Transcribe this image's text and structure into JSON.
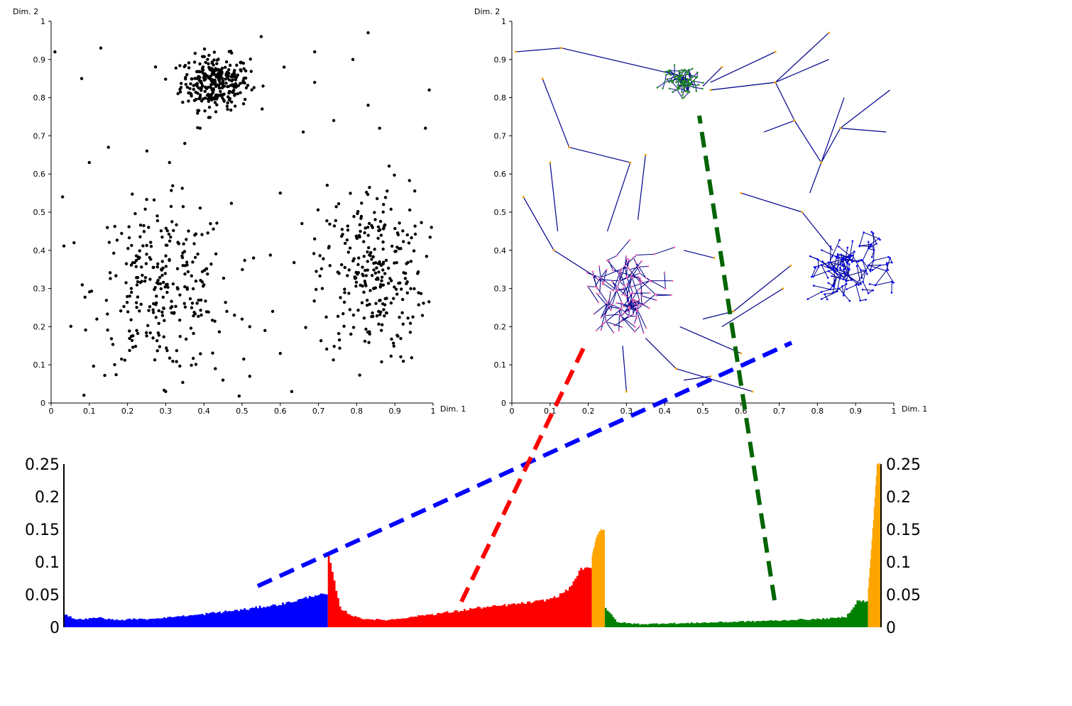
{
  "chart_data": [
    {
      "type": "scatter",
      "panel": "top-left",
      "xlabel": "Dim. 1",
      "ylabel": "Dim. 2",
      "xlim": [
        0,
        1
      ],
      "ylim": [
        0,
        1
      ],
      "xticks": [
        "0",
        "0.1",
        "0.2",
        "0.3",
        "0.4",
        "0.5",
        "0.6",
        "0.7",
        "0.8",
        "0.9",
        "1"
      ],
      "yticks": [
        "0",
        "0.1",
        "0.2",
        "0.3",
        "0.4",
        "0.5",
        "0.6",
        "0.7",
        "0.8",
        "0.9",
        "1"
      ],
      "point_color": "#000000",
      "clusters": [
        {
          "center": [
            0.43,
            0.84
          ],
          "spread": [
            0.045,
            0.035
          ],
          "count": 300
        },
        {
          "center": [
            0.29,
            0.3
          ],
          "spread": [
            0.09,
            0.11
          ],
          "count": 280
        },
        {
          "center": [
            0.84,
            0.34
          ],
          "spread": [
            0.07,
            0.12
          ],
          "count": 280
        }
      ],
      "outliers": [
        [
          0.01,
          0.92
        ],
        [
          0.13,
          0.93
        ],
        [
          0.08,
          0.85
        ],
        [
          0.1,
          0.63
        ],
        [
          0.15,
          0.67
        ],
        [
          0.03,
          0.54
        ],
        [
          0.06,
          0.42
        ],
        [
          0.55,
          0.96
        ],
        [
          0.61,
          0.88
        ],
        [
          0.69,
          0.92
        ],
        [
          0.69,
          0.84
        ],
        [
          0.83,
          0.97
        ],
        [
          0.79,
          0.9
        ],
        [
          0.83,
          0.78
        ],
        [
          0.86,
          0.72
        ],
        [
          0.99,
          0.82
        ],
        [
          0.98,
          0.72
        ],
        [
          0.66,
          0.71
        ],
        [
          0.74,
          0.74
        ],
        [
          0.35,
          0.68
        ],
        [
          0.31,
          0.63
        ],
        [
          0.39,
          0.72
        ],
        [
          0.6,
          0.55
        ],
        [
          0.53,
          0.38
        ],
        [
          0.58,
          0.24
        ],
        [
          0.6,
          0.13
        ],
        [
          0.52,
          0.07
        ],
        [
          0.45,
          0.06
        ],
        [
          0.43,
          0.09
        ],
        [
          0.3,
          0.03
        ],
        [
          0.63,
          0.03
        ],
        [
          0.71,
          0.3
        ],
        [
          0.69,
          0.43
        ],
        [
          0.73,
          0.36
        ],
        [
          0.48,
          0.23
        ],
        [
          0.5,
          0.22
        ],
        [
          0.52,
          0.2
        ],
        [
          0.46,
          0.24
        ],
        [
          0.56,
          0.19
        ]
      ]
    },
    {
      "type": "tree",
      "panel": "top-right",
      "xlabel": "Dim. 1",
      "ylabel": "Dim. 2",
      "xlim": [
        0,
        1
      ],
      "ylim": [
        0,
        1
      ],
      "xticks": [
        "0",
        "0.1",
        "0.2",
        "0.3",
        "0.4",
        "0.5",
        "0.6",
        "0.7",
        "0.8",
        "0.9",
        "1"
      ],
      "yticks": [
        "0",
        "0.1",
        "0.2",
        "0.3",
        "0.4",
        "0.5",
        "0.6",
        "0.7",
        "0.8",
        "0.9",
        "1"
      ],
      "edge_color": "#00008b",
      "subtrees": [
        {
          "root": [
            0.45,
            0.85
          ],
          "spread": 0.08,
          "nodes": 120,
          "node_color": "#228b22"
        },
        {
          "root": [
            0.3,
            0.3
          ],
          "spread": 0.19,
          "nodes": 140,
          "node_color": "#ff69b4"
        },
        {
          "root": [
            0.85,
            0.33
          ],
          "spread": 0.15,
          "nodes": 140,
          "node_color": "#0000ff"
        }
      ],
      "long_edges": [
        [
          [
            0.01,
            0.92
          ],
          [
            0.13,
            0.93
          ]
        ],
        [
          [
            0.13,
            0.93
          ],
          [
            0.43,
            0.86
          ]
        ],
        [
          [
            0.08,
            0.85
          ],
          [
            0.15,
            0.67
          ]
        ],
        [
          [
            0.15,
            0.67
          ],
          [
            0.31,
            0.63
          ]
        ],
        [
          [
            0.31,
            0.63
          ],
          [
            0.25,
            0.45
          ]
        ],
        [
          [
            0.1,
            0.63
          ],
          [
            0.12,
            0.45
          ]
        ],
        [
          [
            0.03,
            0.54
          ],
          [
            0.11,
            0.4
          ]
        ],
        [
          [
            0.11,
            0.4
          ],
          [
            0.22,
            0.33
          ]
        ],
        [
          [
            0.35,
            0.65
          ],
          [
            0.33,
            0.48
          ]
        ],
        [
          [
            0.55,
            0.88
          ],
          [
            0.5,
            0.83
          ]
        ],
        [
          [
            0.69,
            0.92
          ],
          [
            0.52,
            0.84
          ]
        ],
        [
          [
            0.69,
            0.84
          ],
          [
            0.52,
            0.82
          ]
        ],
        [
          [
            0.52,
            0.82
          ],
          [
            0.69,
            0.84
          ]
        ],
        [
          [
            0.69,
            0.84
          ],
          [
            0.83,
            0.9
          ]
        ],
        [
          [
            0.83,
            0.97
          ],
          [
            0.69,
            0.84
          ]
        ],
        [
          [
            0.69,
            0.84
          ],
          [
            0.74,
            0.74
          ]
        ],
        [
          [
            0.74,
            0.74
          ],
          [
            0.66,
            0.71
          ]
        ],
        [
          [
            0.74,
            0.74
          ],
          [
            0.81,
            0.63
          ]
        ],
        [
          [
            0.81,
            0.63
          ],
          [
            0.86,
            0.72
          ]
        ],
        [
          [
            0.86,
            0.72
          ],
          [
            0.99,
            0.82
          ]
        ],
        [
          [
            0.86,
            0.72
          ],
          [
            0.98,
            0.71
          ]
        ],
        [
          [
            0.81,
            0.63
          ],
          [
            0.87,
            0.8
          ]
        ],
        [
          [
            0.81,
            0.63
          ],
          [
            0.78,
            0.55
          ]
        ],
        [
          [
            0.6,
            0.55
          ],
          [
            0.76,
            0.5
          ]
        ],
        [
          [
            0.76,
            0.5
          ],
          [
            0.84,
            0.4
          ]
        ],
        [
          [
            0.53,
            0.38
          ],
          [
            0.45,
            0.4
          ]
        ],
        [
          [
            0.71,
            0.3
          ],
          [
            0.55,
            0.2
          ]
        ],
        [
          [
            0.73,
            0.36
          ],
          [
            0.58,
            0.24
          ]
        ],
        [
          [
            0.58,
            0.24
          ],
          [
            0.5,
            0.22
          ]
        ],
        [
          [
            0.6,
            0.13
          ],
          [
            0.44,
            0.2
          ]
        ],
        [
          [
            0.63,
            0.03
          ],
          [
            0.43,
            0.09
          ]
        ],
        [
          [
            0.43,
            0.09
          ],
          [
            0.35,
            0.17
          ]
        ],
        [
          [
            0.3,
            0.03
          ],
          [
            0.29,
            0.15
          ]
        ],
        [
          [
            0.52,
            0.07
          ],
          [
            0.45,
            0.06
          ]
        ]
      ]
    },
    {
      "type": "area",
      "panel": "bottom",
      "yticks": [
        "0",
        "0.05",
        "0.1",
        "0.15",
        "0.2",
        "0.25"
      ],
      "ylim": [
        0,
        0.25
      ],
      "series": [
        {
          "color": "#0000ff",
          "x_range": [
            0.0,
            0.323
          ],
          "values": [
            0.02,
            0.012,
            0.013,
            0.015,
            0.012,
            0.011,
            0.013,
            0.012,
            0.014,
            0.015,
            0.017,
            0.018,
            0.02,
            0.022,
            0.024,
            0.026,
            0.028,
            0.031,
            0.033,
            0.036,
            0.04,
            0.045,
            0.05
          ]
        },
        {
          "color": "#ff0000",
          "x_range": [
            0.323,
            0.646
          ],
          "values": [
            0.11,
            0.03,
            0.018,
            0.013,
            0.012,
            0.011,
            0.013,
            0.015,
            0.018,
            0.02,
            0.022,
            0.024,
            0.027,
            0.03,
            0.031,
            0.033,
            0.035,
            0.037,
            0.039,
            0.042,
            0.048,
            0.06,
            0.09
          ]
        },
        {
          "color": "#ffa500",
          "x_range": [
            0.646,
            0.662
          ],
          "values": [
            0.11,
            0.14,
            0.15
          ]
        },
        {
          "color": "#008000",
          "x_range": [
            0.662,
            0.984
          ],
          "values": [
            0.03,
            0.008,
            0.006,
            0.005,
            0.005,
            0.006,
            0.006,
            0.006,
            0.007,
            0.007,
            0.008,
            0.008,
            0.009,
            0.009,
            0.01,
            0.01,
            0.011,
            0.012,
            0.012,
            0.013,
            0.014,
            0.016,
            0.04
          ]
        },
        {
          "color": "#ffa500",
          "x_range": [
            0.984,
            1.0
          ],
          "values": [
            0.06,
            0.15,
            0.25
          ]
        }
      ],
      "spikes": [
        {
          "x": 0.0,
          "value": 0.25,
          "color": "#000000"
        },
        {
          "x": 1.0,
          "value": 0.25,
          "color": "#000000"
        }
      ]
    }
  ],
  "connectors": [
    {
      "color": "#0000ff",
      "from": "bottom blue segment",
      "to": "right cluster"
    },
    {
      "color": "#ff0000",
      "from": "bottom red segment",
      "to": "left cluster"
    },
    {
      "color": "#008000",
      "from": "bottom green segment",
      "to": "top cluster"
    }
  ]
}
